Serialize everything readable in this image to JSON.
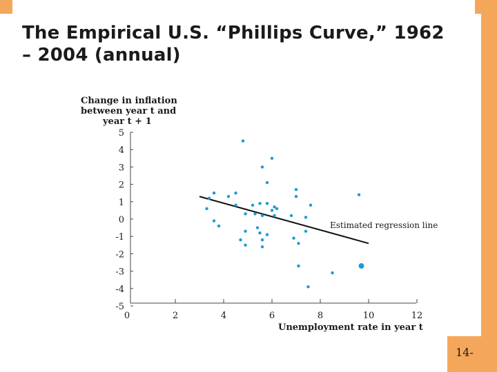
{
  "slide": {
    "title_line1": "The Empirical U.S. “Phillips Curve,” 1962",
    "title_line2": "– 2004 (annual)",
    "page_number": "14-",
    "accent_color": "#f4a75a"
  },
  "chart_data": {
    "type": "scatter",
    "title": "",
    "ylabel_lines": [
      "Change in inflation",
      "between year t and",
      "year t + 1"
    ],
    "xlabel": "Unemployment rate in year t",
    "xlim": [
      0,
      12
    ],
    "ylim": [
      -5,
      5
    ],
    "x_ticks": [
      {
        "value": 0,
        "label": "0"
      },
      {
        "value": 2,
        "label": "2"
      },
      {
        "value": 4,
        "label": "4"
      },
      {
        "value": 6,
        "label": "6"
      },
      {
        "value": 8,
        "label": "8"
      },
      {
        "value": 10,
        "label": "10"
      },
      {
        "value": 12,
        "label": "12"
      }
    ],
    "y_ticks": [
      {
        "value": 5,
        "label": "5"
      },
      {
        "value": 4,
        "label": "4"
      },
      {
        "value": 3,
        "label": "3"
      },
      {
        "value": 2,
        "label": "2"
      },
      {
        "value": 1,
        "label": "1"
      },
      {
        "value": 0,
        "label": "0"
      },
      {
        "value": -1,
        "label": "-1"
      },
      {
        "value": -2,
        "label": "-2"
      },
      {
        "value": -3,
        "label": "-3"
      },
      {
        "value": -4,
        "label": "-4"
      },
      {
        "value": -5,
        "label": "-5"
      }
    ],
    "grid": false,
    "point_color": "#1b9ad6",
    "points": [
      {
        "x": 4.8,
        "y": 4.5
      },
      {
        "x": 6.0,
        "y": 3.5
      },
      {
        "x": 5.6,
        "y": 3.0
      },
      {
        "x": 5.8,
        "y": 2.1
      },
      {
        "x": 7.0,
        "y": 1.7
      },
      {
        "x": 3.6,
        "y": 1.5
      },
      {
        "x": 3.4,
        "y": 1.2
      },
      {
        "x": 4.2,
        "y": 1.3
      },
      {
        "x": 4.5,
        "y": 1.5
      },
      {
        "x": 7.0,
        "y": 1.3
      },
      {
        "x": 9.6,
        "y": 1.4
      },
      {
        "x": 3.3,
        "y": 0.6
      },
      {
        "x": 4.5,
        "y": 0.8
      },
      {
        "x": 5.2,
        "y": 0.8
      },
      {
        "x": 5.5,
        "y": 0.9
      },
      {
        "x": 5.8,
        "y": 0.9
      },
      {
        "x": 6.1,
        "y": 0.7
      },
      {
        "x": 6.0,
        "y": 0.5
      },
      {
        "x": 6.2,
        "y": 0.6
      },
      {
        "x": 7.6,
        "y": 0.8
      },
      {
        "x": 5.3,
        "y": 0.3
      },
      {
        "x": 5.6,
        "y": 0.2
      },
      {
        "x": 6.1,
        "y": 0.2
      },
      {
        "x": 6.8,
        "y": 0.2
      },
      {
        "x": 4.9,
        "y": 0.3
      },
      {
        "x": 7.4,
        "y": 0.1
      },
      {
        "x": 3.6,
        "y": -0.1
      },
      {
        "x": 3.8,
        "y": -0.4
      },
      {
        "x": 5.4,
        "y": -0.5
      },
      {
        "x": 4.9,
        "y": -0.7
      },
      {
        "x": 5.5,
        "y": -0.8
      },
      {
        "x": 5.8,
        "y": -0.9
      },
      {
        "x": 7.4,
        "y": -0.7
      },
      {
        "x": 6.9,
        "y": -1.1
      },
      {
        "x": 4.7,
        "y": -1.2
      },
      {
        "x": 5.6,
        "y": -1.2
      },
      {
        "x": 7.1,
        "y": -1.4
      },
      {
        "x": 4.9,
        "y": -1.5
      },
      {
        "x": 5.6,
        "y": -1.6
      },
      {
        "x": 7.1,
        "y": -2.7
      },
      {
        "x": 9.7,
        "y": -2.7,
        "emphasis": true
      },
      {
        "x": 8.5,
        "y": -3.1
      },
      {
        "x": 7.5,
        "y": -3.9
      }
    ],
    "regression_line": {
      "x1": 3.0,
      "y1": 1.3,
      "x2": 10.0,
      "y2": -1.4
    },
    "annotation": "Estimated regression line"
  }
}
